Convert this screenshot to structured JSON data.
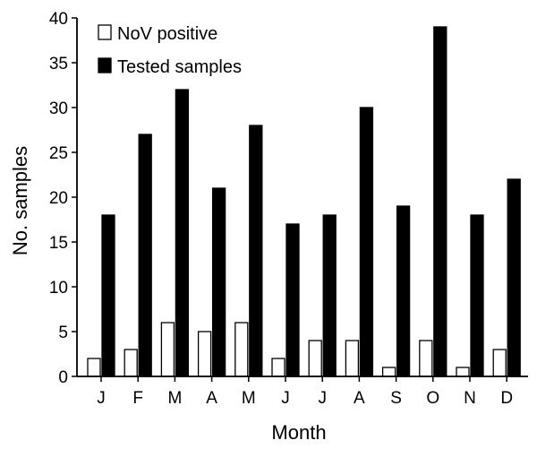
{
  "chart_data": {
    "type": "bar",
    "xlabel": "Month",
    "ylabel": "No. samples",
    "categories": [
      "J",
      "F",
      "M",
      "A",
      "M",
      "J",
      "J",
      "A",
      "S",
      "O",
      "N",
      "D"
    ],
    "ylim": [
      0,
      40
    ],
    "yticks": [
      0,
      5,
      10,
      15,
      20,
      25,
      30,
      35,
      40
    ],
    "grid": false,
    "legend_position": "top-left",
    "series": [
      {
        "name": "NoV positive",
        "values": [
          2,
          3,
          6,
          5,
          6,
          2,
          4,
          4,
          1,
          4,
          1,
          3
        ],
        "color": "#ffffff"
      },
      {
        "name": "Tested samples",
        "values": [
          18,
          27,
          32,
          21,
          28,
          17,
          18,
          30,
          19,
          39,
          18,
          22
        ],
        "color": "#000000"
      }
    ]
  }
}
